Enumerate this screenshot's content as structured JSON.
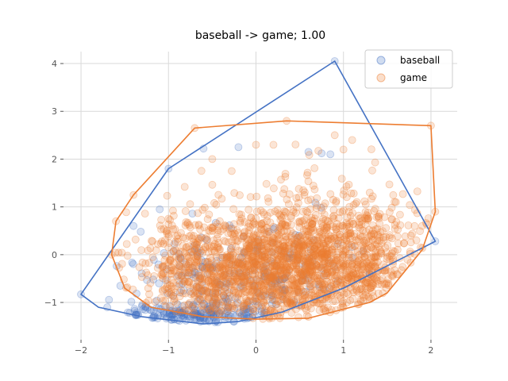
{
  "chart_data": {
    "type": "scatter",
    "title": "baseball -> game; 1.00",
    "xlabel": "",
    "ylabel": "",
    "xlim": [
      -2.2,
      2.3
    ],
    "ylim": [
      -1.78,
      4.25
    ],
    "x_ticks": [
      -2,
      -1,
      0,
      1,
      2
    ],
    "y_ticks": [
      -1,
      0,
      1,
      2,
      3,
      4
    ],
    "grid": true,
    "legend_position": "top-right",
    "series": [
      {
        "name": "baseball",
        "color": "#4472C4",
        "hull": [
          [
            -2.0,
            -0.83
          ],
          [
            -1.8,
            -1.1
          ],
          [
            -1.3,
            -1.3
          ],
          [
            -0.6,
            -1.45
          ],
          [
            -0.2,
            -1.4
          ],
          [
            0.3,
            -1.2
          ],
          [
            1.0,
            -0.7
          ],
          [
            2.05,
            0.28
          ],
          [
            0.9,
            4.05
          ],
          [
            -1.0,
            1.8
          ]
        ],
        "cloud": {
          "cx": -0.2,
          "cy": -0.55,
          "sx": 0.65,
          "sy": 0.55,
          "n": 260,
          "rot": 0.45,
          "seed": 11
        },
        "band": {
          "x0": -1.5,
          "x1": 0.1,
          "y": -1.28,
          "dy": 0.12,
          "n": 160,
          "seed": 5
        },
        "outliers": [
          [
            -2.0,
            -0.83
          ],
          [
            2.05,
            0.28
          ],
          [
            0.9,
            4.05
          ],
          [
            -1.0,
            1.8
          ],
          [
            -0.6,
            2.22
          ],
          [
            -0.2,
            2.25
          ],
          [
            0.6,
            2.15
          ],
          [
            0.75,
            2.12
          ],
          [
            0.85,
            2.1
          ],
          [
            -1.1,
            0.95
          ],
          [
            -1.4,
            0.6
          ],
          [
            -1.7,
            -1.1
          ],
          [
            -1.55,
            -0.65
          ],
          [
            -1.3,
            -1.05
          ]
        ]
      },
      {
        "name": "game",
        "color": "#ED7D31",
        "hull": [
          [
            -1.6,
            0.7
          ],
          [
            -1.4,
            1.25
          ],
          [
            -0.7,
            2.65
          ],
          [
            0.35,
            2.8
          ],
          [
            2.0,
            2.7
          ],
          [
            2.05,
            0.9
          ],
          [
            1.9,
            0.1
          ],
          [
            1.5,
            -0.8
          ],
          [
            1.3,
            -1.0
          ],
          [
            0.6,
            -1.33
          ],
          [
            0.0,
            -1.35
          ],
          [
            -0.6,
            -1.3
          ],
          [
            -1.2,
            -1.1
          ],
          [
            -1.5,
            -0.7
          ],
          [
            -1.65,
            0.0
          ]
        ],
        "cloud": {
          "cx": 0.35,
          "cy": -0.15,
          "sx": 0.85,
          "sy": 0.65,
          "n": 1500,
          "rot": 0.3,
          "seed": 23
        },
        "band": {
          "x0": -1.1,
          "x1": 1.5,
          "y": -0.5,
          "dy": 0.55,
          "n": 600,
          "seed": 41
        },
        "outliers": [
          [
            -0.7,
            2.65
          ],
          [
            0.35,
            2.8
          ],
          [
            2.0,
            2.7
          ],
          [
            2.05,
            0.9
          ],
          [
            -1.6,
            0.7
          ],
          [
            -1.65,
            0.0
          ],
          [
            -1.4,
            1.25
          ],
          [
            0.0,
            2.3
          ],
          [
            0.2,
            2.3
          ],
          [
            1.0,
            2.2
          ],
          [
            1.1,
            2.4
          ],
          [
            0.9,
            2.5
          ],
          [
            -0.5,
            2.0
          ],
          [
            1.3,
            1.3
          ],
          [
            1.6,
            1.1
          ],
          [
            1.9,
            0.6
          ],
          [
            1.0,
            -1.1
          ],
          [
            0.6,
            -1.3
          ]
        ]
      }
    ]
  }
}
